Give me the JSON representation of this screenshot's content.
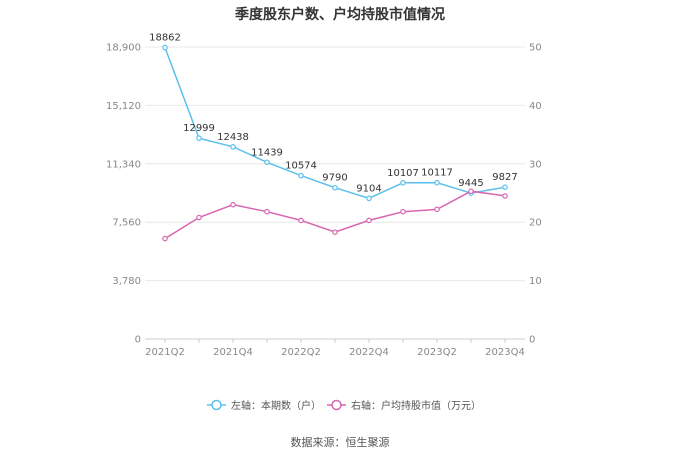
{
  "colors": {
    "left_series": "#5bc0eb",
    "right_series": "#d966b2",
    "grid": "#e8e8e8",
    "axis": "#cccccc"
  },
  "source": "数据来源：恒生聚源",
  "chart_data": {
    "type": "line",
    "title": "季度股东户数、户均持股市值情况",
    "x": [
      "2021Q2",
      "2021Q3",
      "2021Q4",
      "2022Q1",
      "2022Q2",
      "2022Q3",
      "2022Q4",
      "2023Q1",
      "2023Q2",
      "2023Q3",
      "2023Q4"
    ],
    "x_tick_labels": [
      "2021Q2",
      "2021Q4",
      "2022Q2",
      "2022Q4",
      "2023Q2",
      "2023Q4"
    ],
    "y_left": {
      "ticks": [
        "0",
        "3,780",
        "7,560",
        "11,340",
        "15,120",
        "18,900"
      ],
      "lim": [
        0,
        18900
      ]
    },
    "y_right": {
      "ticks": [
        "0",
        "10",
        "20",
        "30",
        "40",
        "50"
      ],
      "lim": [
        0,
        50
      ]
    },
    "grid": true,
    "legend_position": "bottom",
    "series": [
      {
        "name": "左轴：本期数（户）",
        "axis": "left",
        "values": [
          18862,
          12999,
          12438,
          11439,
          10574,
          9790,
          9104,
          10107,
          10117,
          9445,
          9827
        ],
        "labels": [
          "18862",
          "12999",
          "12438",
          "11439",
          "10574",
          "9790",
          "9104",
          "10107",
          "10117",
          "9445",
          "9827"
        ]
      },
      {
        "name": "右轴：户均持股市值（万元）",
        "axis": "right",
        "values": [
          17.2,
          20.8,
          23.0,
          21.8,
          20.3,
          18.3,
          20.3,
          21.8,
          22.2,
          25.3,
          24.5
        ]
      }
    ]
  }
}
